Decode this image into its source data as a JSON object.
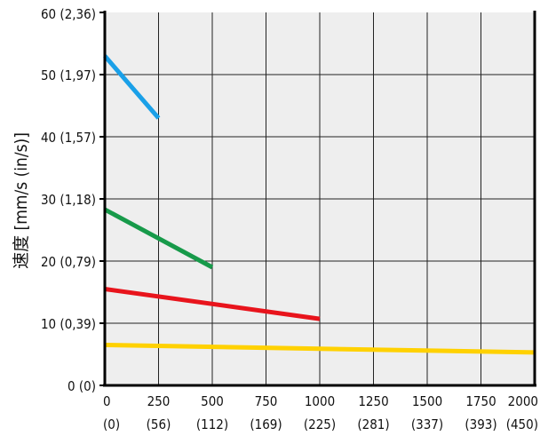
{
  "chart_data": {
    "type": "line",
    "ylabel": "速度 [mm/s (in/s)]",
    "xlabel": "",
    "title": "",
    "xlim": [
      0,
      2000
    ],
    "ylim": [
      0,
      60
    ],
    "grid": true,
    "background": "#eeeeee",
    "x_ticks": [
      {
        "value": 0,
        "label": "0",
        "sub": "(0)"
      },
      {
        "value": 250,
        "label": "250",
        "sub": "(56)"
      },
      {
        "value": 500,
        "label": "500",
        "sub": "(112)"
      },
      {
        "value": 750,
        "label": "750",
        "sub": "(169)"
      },
      {
        "value": 1000,
        "label": "1000",
        "sub": "(225)"
      },
      {
        "value": 1250,
        "label": "1250",
        "sub": "(281)"
      },
      {
        "value": 1500,
        "label": "1500",
        "sub": "(337)"
      },
      {
        "value": 1750,
        "label": "1750",
        "sub": "(393)"
      },
      {
        "value": 2000,
        "label": "2000",
        "sub": "(450)"
      }
    ],
    "y_ticks": [
      {
        "value": 0,
        "label": "0 (0)"
      },
      {
        "value": 10,
        "label": "10 (0,39)"
      },
      {
        "value": 20,
        "label": "20 (0,79)"
      },
      {
        "value": 30,
        "label": "30 (1,18)"
      },
      {
        "value": 40,
        "label": "40 (1,57)"
      },
      {
        "value": 50,
        "label": "50 (1,97)"
      },
      {
        "value": 60,
        "label": "60 (2,36)"
      }
    ],
    "series": [
      {
        "color": "#1aa0e8",
        "x": [
          0,
          250
        ],
        "y": [
          53,
          43
        ]
      },
      {
        "color": "#179a4a",
        "x": [
          0,
          500
        ],
        "y": [
          28.3,
          19
        ]
      },
      {
        "color": "#e8141c",
        "x": [
          0,
          1000
        ],
        "y": [
          15.5,
          10.7
        ]
      },
      {
        "color": "#ffd100",
        "x": [
          0,
          2000
        ],
        "y": [
          6.5,
          5.3
        ]
      }
    ]
  }
}
